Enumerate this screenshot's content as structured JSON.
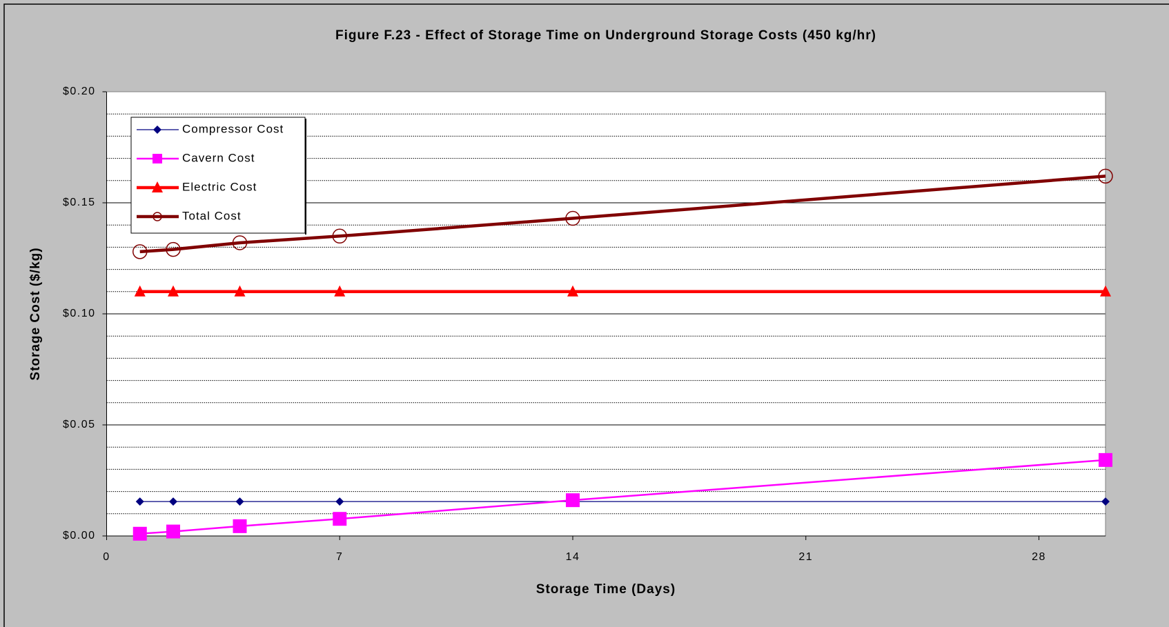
{
  "chart_data": {
    "type": "line",
    "title": "Figure F.23 - Effect of Storage Time on Underground Storage Costs (450 kg/hr)",
    "x_label": "Storage Time (Days)",
    "y_label": "Storage Cost ($/kg)",
    "x": [
      1,
      2,
      4,
      7,
      14,
      30
    ],
    "xlim": [
      0,
      30
    ],
    "xticks": [
      0,
      7,
      14,
      21,
      28
    ],
    "ylim": [
      0,
      0.2
    ],
    "yticks": [
      {
        "value": 0,
        "label": "$0.00"
      },
      {
        "value": 0.05,
        "label": "$0.05"
      },
      {
        "value": 0.1,
        "label": "$0.10"
      },
      {
        "value": 0.15,
        "label": "$0.15"
      },
      {
        "value": 0.2,
        "label": "$0.20"
      }
    ],
    "y_minor_ticks": [
      0.01,
      0.02,
      0.03,
      0.04,
      0.06,
      0.07,
      0.08,
      0.09,
      0.11,
      0.12,
      0.13,
      0.14,
      0.16,
      0.17,
      0.18,
      0.19
    ],
    "grid": true,
    "legend": "upper left",
    "series": [
      {
        "name": "Compressor Cost",
        "color": "#000080",
        "marker": "diamond",
        "values": [
          0.0155,
          0.0155,
          0.0155,
          0.0155,
          0.0155,
          0.0155
        ]
      },
      {
        "name": "Cavern Cost",
        "color": "#ff00ff",
        "marker": "square",
        "values": [
          0.001,
          0.002,
          0.0044,
          0.0077,
          0.0161,
          0.0342
        ]
      },
      {
        "name": "Electric Cost",
        "color": "#ff0000",
        "marker": "triangle",
        "values": [
          0.11,
          0.11,
          0.11,
          0.11,
          0.11,
          0.11
        ]
      },
      {
        "name": "Total Cost",
        "color": "#800000",
        "marker": "circle",
        "values": [
          0.128,
          0.129,
          0.132,
          0.135,
          0.143,
          0.162
        ]
      }
    ]
  }
}
